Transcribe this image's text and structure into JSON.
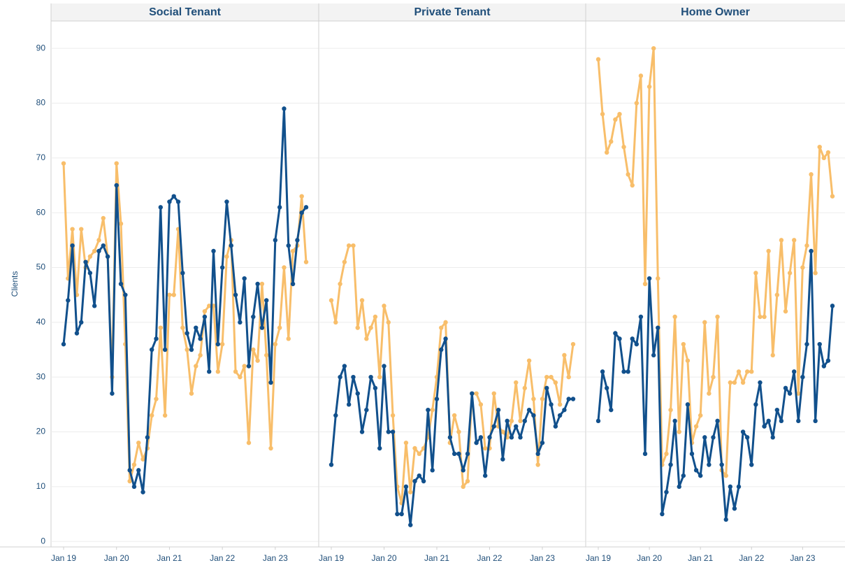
{
  "chart_data": [
    {
      "type": "line",
      "title": "Social Tenant",
      "y_label": "Clients",
      "x": [
        "2019-01",
        "2019-02",
        "2019-03",
        "2019-04",
        "2019-05",
        "2019-06",
        "2019-07",
        "2019-08",
        "2019-09",
        "2019-10",
        "2019-11",
        "2019-12",
        "2020-01",
        "2020-02",
        "2020-03",
        "2020-04",
        "2020-05",
        "2020-06",
        "2020-07",
        "2020-08",
        "2020-09",
        "2020-10",
        "2020-11",
        "2020-12",
        "2021-01",
        "2021-02",
        "2021-03",
        "2021-04",
        "2021-05",
        "2021-06",
        "2021-07",
        "2021-08",
        "2021-09",
        "2021-10",
        "2021-11",
        "2021-12",
        "2022-01",
        "2022-02",
        "2022-03",
        "2022-04",
        "2022-05",
        "2022-06",
        "2022-07",
        "2022-08",
        "2022-09",
        "2022-10",
        "2022-11",
        "2022-12",
        "2023-01",
        "2023-02",
        "2023-03",
        "2023-04",
        "2023-05",
        "2023-06",
        "2023-07",
        "2023-08"
      ],
      "xticks": [
        {
          "value": "2019-01",
          "label": "Jan 19"
        },
        {
          "value": "2020-01",
          "label": "Jan 20"
        },
        {
          "value": "2021-01",
          "label": "Jan 21"
        },
        {
          "value": "2022-01",
          "label": "Jan 22"
        },
        {
          "value": "2023-01",
          "label": "Jan 23"
        }
      ],
      "ylim": [
        -1,
        95
      ],
      "yticks": [
        0,
        10,
        20,
        30,
        40,
        50,
        60,
        70,
        80,
        90
      ],
      "grid": true,
      "series": [
        {
          "color": "#f8be6a",
          "values": [
            69,
            48,
            57,
            45,
            57,
            50,
            52,
            53,
            55,
            59,
            52,
            30,
            69,
            58,
            36,
            11,
            14,
            18,
            15,
            17,
            23,
            26,
            39,
            23,
            45,
            45,
            57,
            39,
            35,
            27,
            32,
            34,
            42,
            43,
            43,
            31,
            36,
            52,
            55,
            31,
            30,
            32,
            18,
            35,
            33,
            47,
            34,
            17,
            36,
            39,
            50,
            37,
            53,
            54,
            63,
            51
          ]
        },
        {
          "color": "#11508c",
          "values": [
            36,
            44,
            54,
            38,
            40,
            51,
            49,
            43,
            53,
            54,
            52,
            27,
            65,
            47,
            45,
            13,
            10,
            13,
            9,
            19,
            35,
            37,
            61,
            35,
            62,
            63,
            62,
            49,
            38,
            35,
            39,
            37,
            41,
            31,
            53,
            36,
            50,
            62,
            54,
            45,
            40,
            48,
            32,
            41,
            47,
            39,
            44,
            29,
            55,
            61,
            79,
            54,
            47,
            55,
            60,
            61
          ]
        }
      ]
    },
    {
      "type": "line",
      "title": "Private Tenant",
      "x": [
        "2019-01",
        "2019-02",
        "2019-03",
        "2019-04",
        "2019-05",
        "2019-06",
        "2019-07",
        "2019-08",
        "2019-09",
        "2019-10",
        "2019-11",
        "2019-12",
        "2020-01",
        "2020-02",
        "2020-03",
        "2020-04",
        "2020-05",
        "2020-06",
        "2020-07",
        "2020-08",
        "2020-09",
        "2020-10",
        "2020-11",
        "2020-12",
        "2021-01",
        "2021-02",
        "2021-03",
        "2021-04",
        "2021-05",
        "2021-06",
        "2021-07",
        "2021-08",
        "2021-09",
        "2021-10",
        "2021-11",
        "2021-12",
        "2022-01",
        "2022-02",
        "2022-03",
        "2022-04",
        "2022-05",
        "2022-06",
        "2022-07",
        "2022-08",
        "2022-09",
        "2022-10",
        "2022-11",
        "2022-12",
        "2023-01",
        "2023-02",
        "2023-03",
        "2023-04",
        "2023-05",
        "2023-06",
        "2023-07",
        "2023-08"
      ],
      "xticks": [
        {
          "value": "2019-01",
          "label": "Jan 19"
        },
        {
          "value": "2020-01",
          "label": "Jan 20"
        },
        {
          "value": "2021-01",
          "label": "Jan 21"
        },
        {
          "value": "2022-01",
          "label": "Jan 22"
        },
        {
          "value": "2023-01",
          "label": "Jan 23"
        }
      ],
      "ylim": [
        -1,
        95
      ],
      "yticks": [
        0,
        10,
        20,
        30,
        40,
        50,
        60,
        70,
        80,
        90
      ],
      "grid": true,
      "series": [
        {
          "color": "#f8be6a",
          "values": [
            44,
            40,
            47,
            51,
            54,
            54,
            39,
            44,
            37,
            39,
            41,
            30,
            43,
            40,
            23,
            10,
            7,
            18,
            9,
            17,
            16,
            17,
            19,
            24,
            30,
            39,
            40,
            18,
            23,
            20,
            10,
            11,
            27,
            27,
            25,
            17,
            17,
            27,
            21,
            20,
            19,
            22,
            29,
            22,
            28,
            33,
            26,
            14,
            26,
            30,
            30,
            29,
            25,
            34,
            30,
            36
          ]
        },
        {
          "color": "#11508c",
          "values": [
            14,
            23,
            30,
            32,
            25,
            30,
            27,
            20,
            24,
            30,
            28,
            17,
            32,
            20,
            20,
            5,
            5,
            10,
            3,
            11,
            12,
            11,
            24,
            13,
            26,
            35,
            37,
            19,
            16,
            16,
            13,
            16,
            27,
            18,
            19,
            12,
            19,
            21,
            24,
            15,
            22,
            19,
            21,
            19,
            22,
            24,
            23,
            16,
            18,
            28,
            25,
            21,
            23,
            24,
            26,
            26
          ]
        }
      ]
    },
    {
      "type": "line",
      "title": "Home Owner",
      "x": [
        "2019-01",
        "2019-02",
        "2019-03",
        "2019-04",
        "2019-05",
        "2019-06",
        "2019-07",
        "2019-08",
        "2019-09",
        "2019-10",
        "2019-11",
        "2019-12",
        "2020-01",
        "2020-02",
        "2020-03",
        "2020-04",
        "2020-05",
        "2020-06",
        "2020-07",
        "2020-08",
        "2020-09",
        "2020-10",
        "2020-11",
        "2020-12",
        "2021-01",
        "2021-02",
        "2021-03",
        "2021-04",
        "2021-05",
        "2021-06",
        "2021-07",
        "2021-08",
        "2021-09",
        "2021-10",
        "2021-11",
        "2021-12",
        "2022-01",
        "2022-02",
        "2022-03",
        "2022-04",
        "2022-05",
        "2022-06",
        "2022-07",
        "2022-08",
        "2022-09",
        "2022-10",
        "2022-11",
        "2022-12",
        "2023-01",
        "2023-02",
        "2023-03",
        "2023-04",
        "2023-05",
        "2023-06",
        "2023-07",
        "2023-08"
      ],
      "xticks": [
        {
          "value": "2019-01",
          "label": "Jan 19"
        },
        {
          "value": "2020-01",
          "label": "Jan 20"
        },
        {
          "value": "2021-01",
          "label": "Jan 21"
        },
        {
          "value": "2022-01",
          "label": "Jan 22"
        },
        {
          "value": "2023-01",
          "label": "Jan 23"
        }
      ],
      "ylim": [
        -1,
        95
      ],
      "yticks": [
        0,
        10,
        20,
        30,
        40,
        50,
        60,
        70,
        80,
        90
      ],
      "grid": true,
      "series": [
        {
          "color": "#f8be6a",
          "values": [
            88,
            78,
            71,
            73,
            77,
            78,
            72,
            67,
            65,
            80,
            85,
            47,
            83,
            90,
            48,
            14,
            16,
            24,
            41,
            20,
            36,
            33,
            18,
            21,
            23,
            40,
            27,
            30,
            41,
            13,
            12,
            29,
            29,
            31,
            29,
            31,
            31,
            49,
            41,
            41,
            53,
            34,
            45,
            55,
            42,
            49,
            55,
            27,
            50,
            54,
            67,
            49,
            72,
            70,
            71,
            63
          ]
        },
        {
          "color": "#11508c",
          "values": [
            22,
            31,
            28,
            24,
            38,
            37,
            31,
            31,
            37,
            36,
            41,
            16,
            48,
            34,
            39,
            5,
            9,
            14,
            22,
            10,
            12,
            25,
            16,
            13,
            12,
            19,
            14,
            19,
            22,
            14,
            4,
            10,
            6,
            10,
            20,
            19,
            14,
            25,
            29,
            21,
            22,
            19,
            24,
            22,
            28,
            27,
            31,
            22,
            30,
            36,
            53,
            22,
            36,
            32,
            33,
            43
          ]
        }
      ]
    }
  ]
}
